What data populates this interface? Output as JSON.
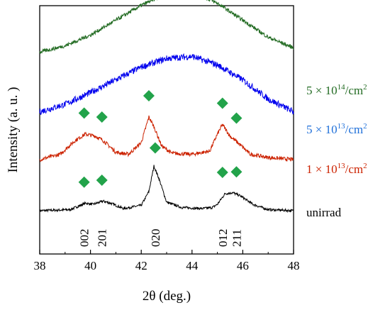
{
  "chart_data": {
    "type": "line",
    "xlabel": "2θ (deg.)",
    "ylabel": "Intensity (a. u. )",
    "xlim": [
      38,
      48
    ],
    "xticks": [
      "38",
      "40",
      "42",
      "44",
      "46",
      "48"
    ],
    "grid": false,
    "series": [
      {
        "name": "unirrad",
        "color": "#000000",
        "offset": 0.0,
        "noise": 0.012,
        "points": [
          [
            38,
            0.0
          ],
          [
            39.2,
            0.01
          ],
          [
            39.6,
            0.05
          ],
          [
            39.8,
            0.07
          ],
          [
            40.1,
            0.06
          ],
          [
            40.5,
            0.09
          ],
          [
            40.8,
            0.07
          ],
          [
            41.3,
            0.02
          ],
          [
            42.0,
            0.05
          ],
          [
            42.3,
            0.18
          ],
          [
            42.5,
            0.42
          ],
          [
            42.7,
            0.3
          ],
          [
            43.0,
            0.08
          ],
          [
            43.6,
            0.03
          ],
          [
            44.4,
            0.02
          ],
          [
            44.8,
            0.03
          ],
          [
            45.0,
            0.06
          ],
          [
            45.3,
            0.16
          ],
          [
            45.6,
            0.17
          ],
          [
            45.9,
            0.14
          ],
          [
            46.4,
            0.06
          ],
          [
            47.0,
            0.01
          ],
          [
            48,
            0.0
          ]
        ]
      },
      {
        "name": "1 × 10^13/cm^2",
        "color": "#cc2200",
        "offset": 0.48,
        "noise": 0.018,
        "points": [
          [
            38,
            0.0
          ],
          [
            38.8,
            0.05
          ],
          [
            39.4,
            0.18
          ],
          [
            39.8,
            0.24
          ],
          [
            40.2,
            0.22
          ],
          [
            40.5,
            0.18
          ],
          [
            41.0,
            0.07
          ],
          [
            41.5,
            0.05
          ],
          [
            42.0,
            0.16
          ],
          [
            42.3,
            0.4
          ],
          [
            42.5,
            0.31
          ],
          [
            42.8,
            0.13
          ],
          [
            43.2,
            0.06
          ],
          [
            44.0,
            0.05
          ],
          [
            44.7,
            0.08
          ],
          [
            45.0,
            0.24
          ],
          [
            45.2,
            0.33
          ],
          [
            45.5,
            0.22
          ],
          [
            45.8,
            0.16
          ],
          [
            46.3,
            0.05
          ],
          [
            47.0,
            0.02
          ],
          [
            48,
            0.0
          ]
        ]
      },
      {
        "name": "5 × 10^13/cm^2",
        "color": "#0000ee",
        "offset": 0.93,
        "noise": 0.03,
        "points": [
          [
            38,
            0.0
          ],
          [
            39,
            0.07
          ],
          [
            40,
            0.18
          ],
          [
            41,
            0.3
          ],
          [
            42,
            0.42
          ],
          [
            43,
            0.5
          ],
          [
            44,
            0.52
          ],
          [
            45,
            0.44
          ],
          [
            46,
            0.3
          ],
          [
            47,
            0.12
          ],
          [
            48,
            0.0
          ]
        ]
      },
      {
        "name": "5 × 10^14/cm^2",
        "color": "#226b22",
        "offset": 1.49,
        "noise": 0.018,
        "points": [
          [
            38,
            0.0
          ],
          [
            39,
            0.06
          ],
          [
            40,
            0.16
          ],
          [
            41,
            0.3
          ],
          [
            42,
            0.44
          ],
          [
            43,
            0.55
          ],
          [
            43.9,
            0.58
          ],
          [
            45,
            0.46
          ],
          [
            46,
            0.3
          ],
          [
            47,
            0.14
          ],
          [
            48,
            0.04
          ]
        ]
      }
    ],
    "markers": [
      {
        "series": "unirrad",
        "x": [
          39.75,
          40.45,
          42.55,
          45.2,
          45.75
        ]
      },
      {
        "series": "1 × 10^13/cm^2",
        "x": [
          39.75,
          40.45,
          42.3,
          45.2,
          45.75
        ]
      }
    ],
    "marker_color": "#22a34a",
    "annotations": [
      {
        "text": "002",
        "x": 39.75
      },
      {
        "text": "201",
        "x": 40.45
      },
      {
        "text": "020",
        "x": 42.55
      },
      {
        "text": "012",
        "x": 45.2
      },
      {
        "text": "211",
        "x": 45.75
      }
    ]
  },
  "legend_labels": [
    {
      "prefix": "5 × 10",
      "sup": "14",
      "mid": "/cm",
      "sup2": "2",
      "color": "#226b22"
    },
    {
      "prefix": "5 × 10",
      "sup": "13",
      "mid": "/cm",
      "sup2": "2",
      "color": "#1e6fd9"
    },
    {
      "prefix": "1 × 10",
      "sup": "13",
      "mid": "/cm",
      "sup2": "2",
      "color": "#cc2200"
    },
    {
      "prefix": "unirrad",
      "sup": "",
      "mid": "",
      "sup2": "",
      "color": "#000000"
    }
  ]
}
